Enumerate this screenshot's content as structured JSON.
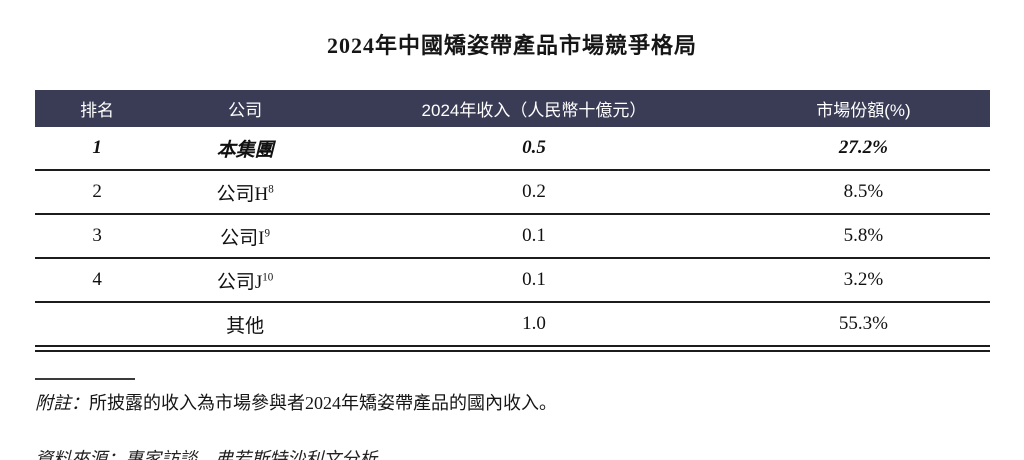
{
  "title": "2024年中國矯姿帶產品市場競爭格局",
  "table": {
    "columns": [
      "排名",
      "公司",
      "2024年收入（人民幣十億元）",
      "市場份額(%)"
    ],
    "rows": [
      {
        "rank": "1",
        "company": "本集團",
        "sup": "",
        "revenue": "0.5",
        "share": "27.2%"
      },
      {
        "rank": "2",
        "company": "公司H",
        "sup": "8",
        "revenue": "0.2",
        "share": "8.5%"
      },
      {
        "rank": "3",
        "company": "公司I",
        "sup": "9",
        "revenue": "0.1",
        "share": "5.8%"
      },
      {
        "rank": "4",
        "company": "公司J",
        "sup": "10",
        "revenue": "0.1",
        "share": "3.2%"
      },
      {
        "rank": "",
        "company": "其他",
        "sup": "",
        "revenue": "1.0",
        "share": "55.3%"
      }
    ]
  },
  "note": {
    "label": "附註：",
    "text": "所披露的收入為市場參與者2024年矯姿帶產品的國內收入。"
  },
  "source": "資料來源：專家訪談、弗若斯特沙利文分析",
  "colors": {
    "header_bg": "#3a3c56",
    "header_text": "#ffffff",
    "rule": "#1c1c1c",
    "body_text": "#111111"
  }
}
